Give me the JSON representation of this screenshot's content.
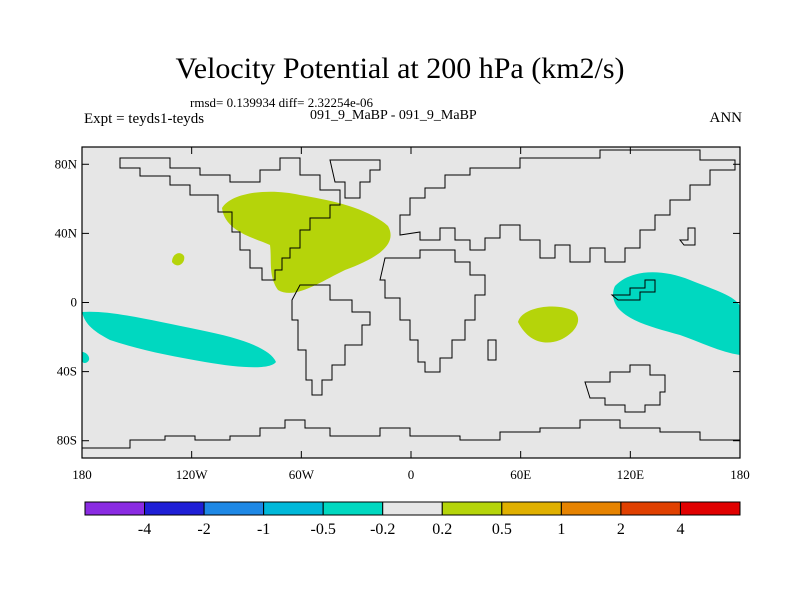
{
  "title": "Velocity Potential at 200 hPa (km2/s)",
  "stats": "rmsd= 0.139934 diff= 2.32254e-06",
  "left_label": "Expt = teyds1-teyds",
  "center_label": "091_9_MaBP - 091_9_MaBP",
  "right_label": "ANN",
  "map": {
    "projection": "cylindrical-equidistant",
    "lon_range": [
      -180,
      180
    ],
    "lat_range": [
      -90,
      90
    ],
    "background_color": "#e6e6e6",
    "lat_ticks": [
      {
        "value": 80,
        "label": "80N"
      },
      {
        "value": 40,
        "label": "40N"
      },
      {
        "value": 0,
        "label": "0"
      },
      {
        "value": -40,
        "label": "40S"
      },
      {
        "value": -80,
        "label": "80S"
      }
    ],
    "lon_ticks": [
      {
        "value": -180,
        "label": "180"
      },
      {
        "value": -120,
        "label": "120W"
      },
      {
        "value": -60,
        "label": "60W"
      },
      {
        "value": 0,
        "label": "0"
      },
      {
        "value": 60,
        "label": "60E"
      },
      {
        "value": 120,
        "label": "120E"
      },
      {
        "value": 180,
        "label": "180"
      }
    ],
    "anomalies": [
      {
        "name": "positive-anomaly-atlantic-south-america",
        "sign": "positive",
        "category": "0.2 to 0.5"
      },
      {
        "name": "positive-anomaly-indian-ocean",
        "sign": "positive",
        "category": "0.2 to 0.5"
      },
      {
        "name": "positive-anomaly-east-pacific",
        "sign": "positive",
        "category": "0.2 to 0.5"
      },
      {
        "name": "negative-anomaly-south-pacific",
        "sign": "negative",
        "category": "-0.5 to -0.2"
      },
      {
        "name": "negative-anomaly-west-pacific",
        "sign": "negative",
        "category": "-0.5 to -0.2"
      }
    ]
  },
  "colorbar": {
    "colors": [
      "#8a2be2",
      "#1f1fd6",
      "#1e88e5",
      "#00b8d9",
      "#00d8c0",
      "#e6e6e6",
      "#b5d40a",
      "#e0b000",
      "#e68300",
      "#e04000",
      "#e00000"
    ],
    "labels": [
      "-4",
      "-2",
      "-1",
      "-0.5",
      "-0.2",
      "0.2",
      "0.5",
      "1",
      "2",
      "4"
    ]
  }
}
